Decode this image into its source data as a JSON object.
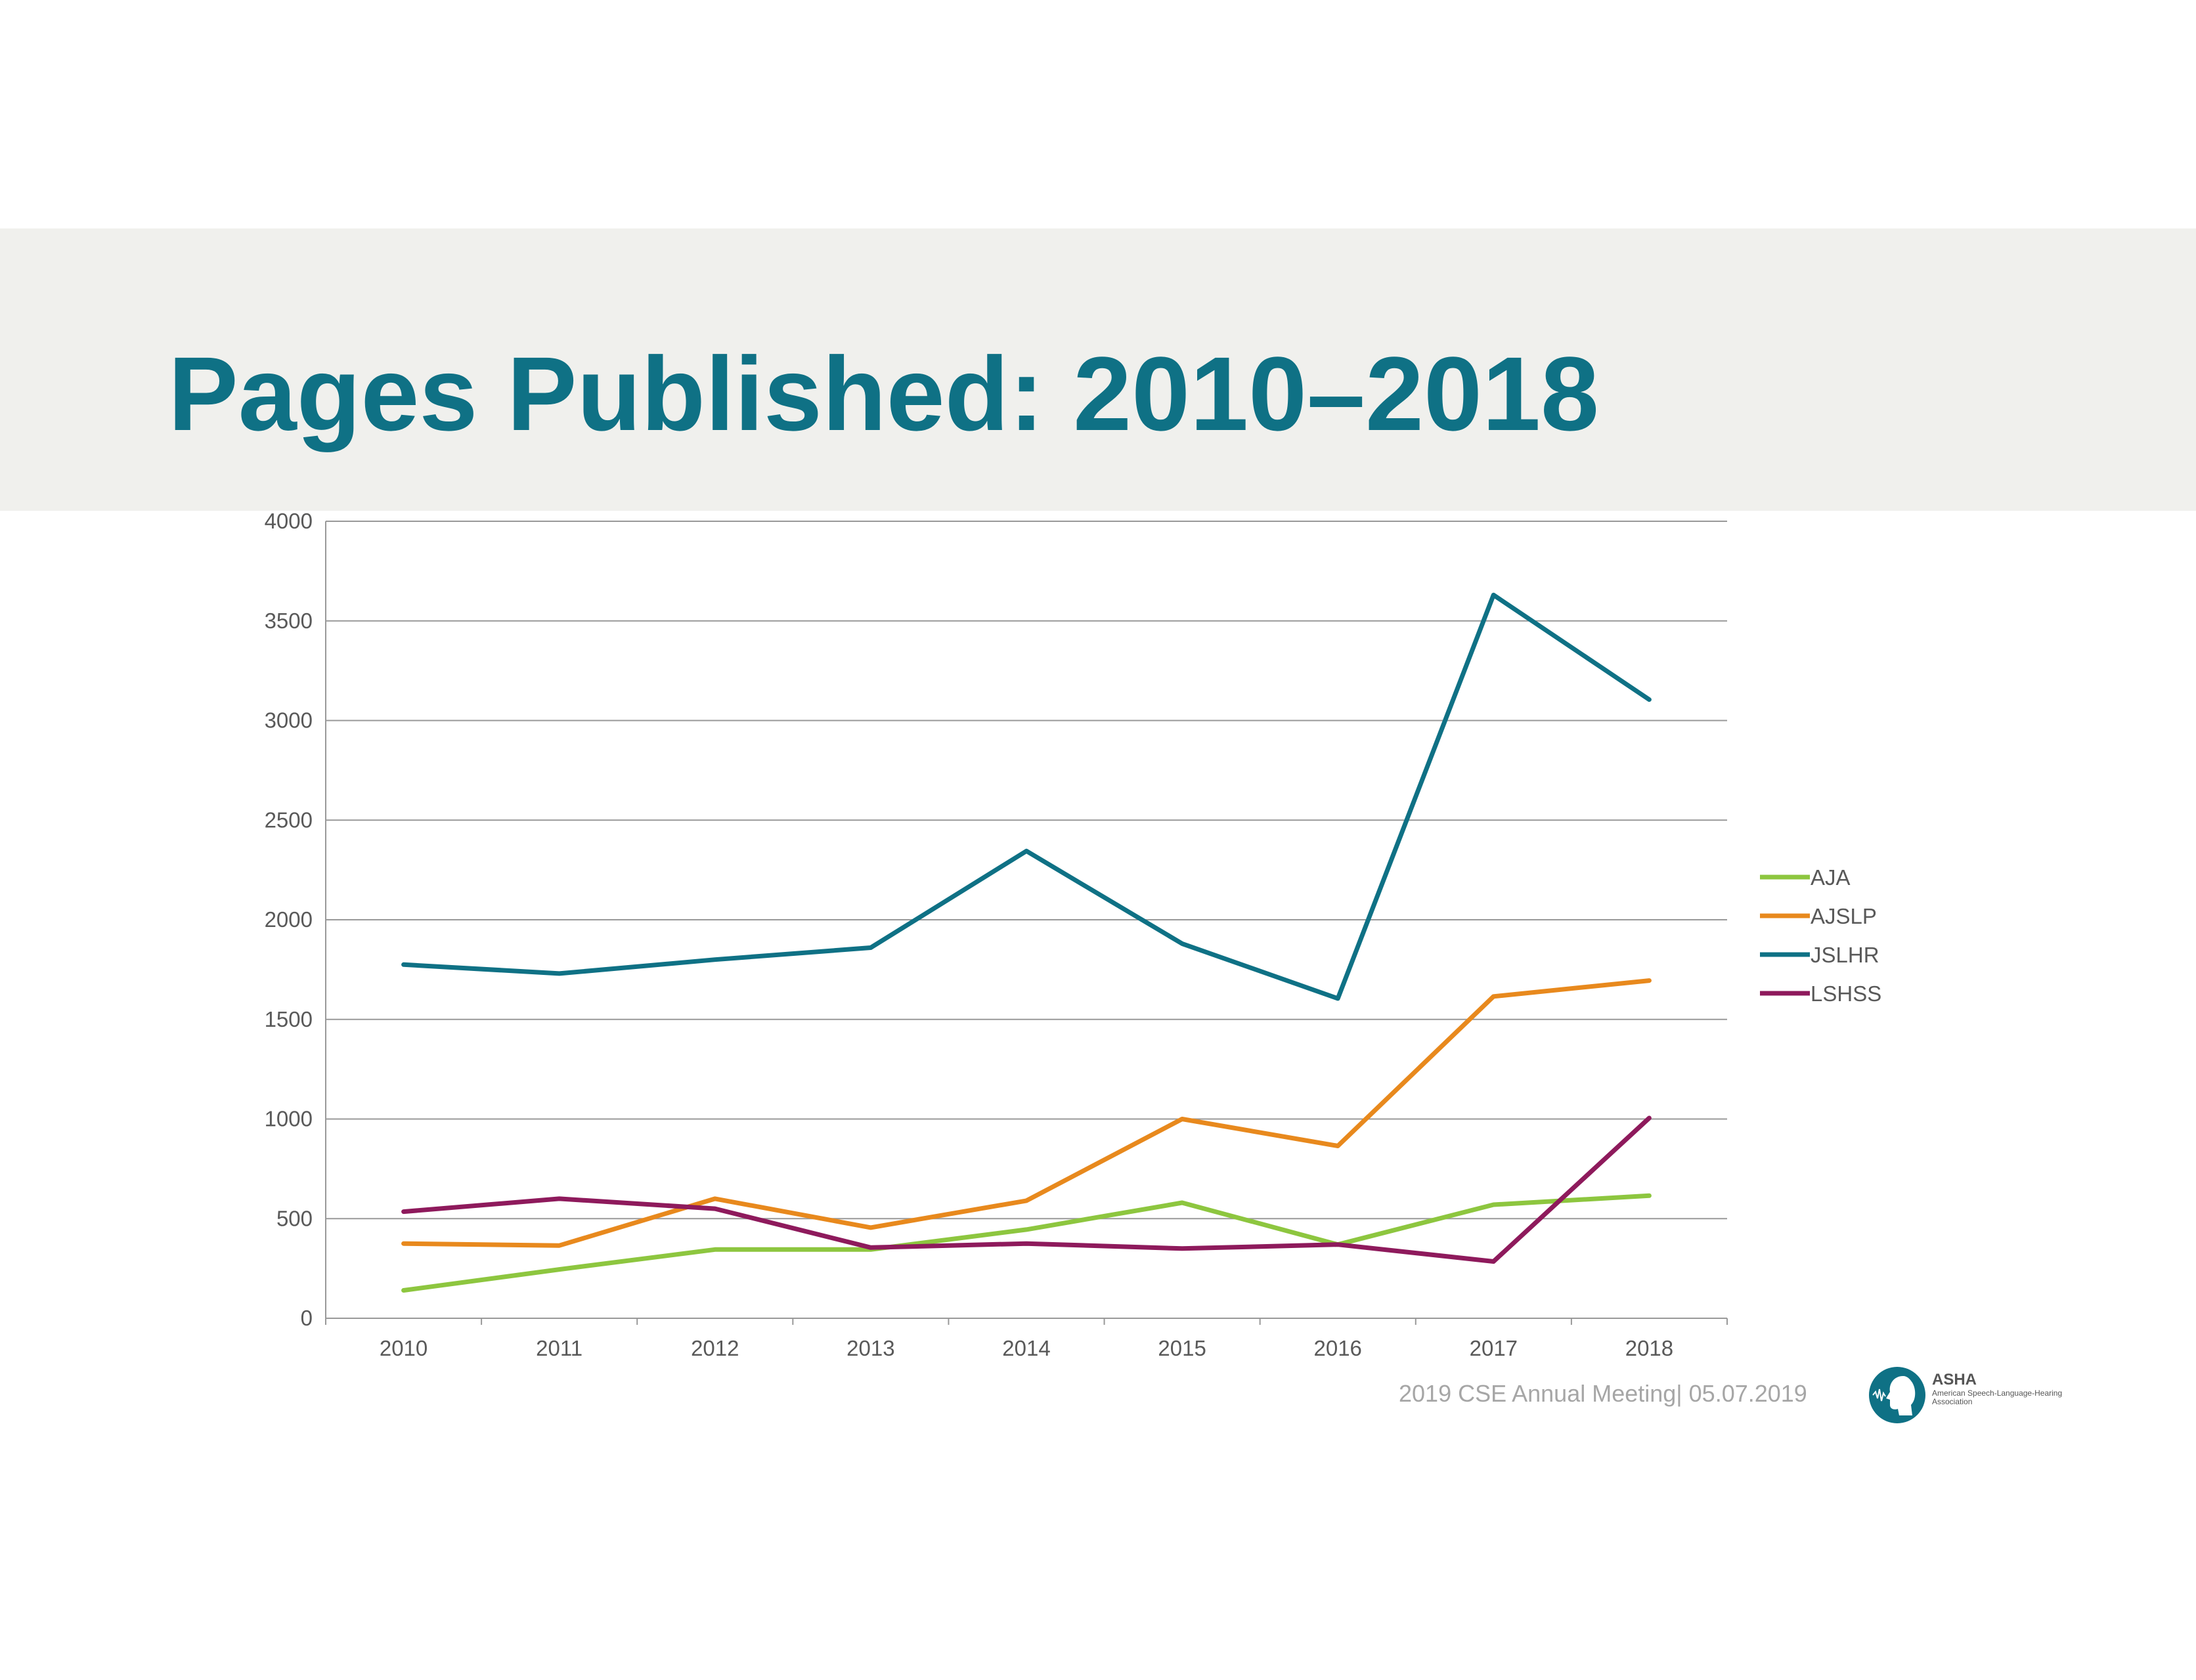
{
  "slide": {
    "title": "Pages Published: 2010–2018",
    "footer": "2019 CSE Annual Meeting| 05.07.2019",
    "logo_name": "ASHA",
    "logo_subtitle": "American Speech-Language-Hearing Association"
  },
  "colors": {
    "title": "#0f7185",
    "band": "#f0f0ed",
    "AJA": "#8dc63f",
    "AJSLP": "#e8891d",
    "JSLHR": "#0f7185",
    "LSHSS": "#8e1a5c"
  },
  "icons": {
    "logo": "asha-head-icon"
  },
  "chart_data": {
    "type": "line",
    "title": "",
    "xlabel": "",
    "ylabel": "",
    "categories": [
      "2010",
      "2011",
      "2012",
      "2013",
      "2014",
      "2015",
      "2016",
      "2017",
      "2018"
    ],
    "ylim": [
      0,
      4000
    ],
    "yticks": [
      "0",
      "500",
      "1000",
      "1500",
      "2000",
      "2500",
      "3000",
      "3500",
      "4000"
    ],
    "grid": true,
    "legend_position": "right",
    "series": [
      {
        "name": "AJA",
        "values": [
          140,
          245,
          345,
          345,
          445,
          580,
          370,
          570,
          615
        ]
      },
      {
        "name": "AJSLP",
        "values": [
          375,
          365,
          600,
          455,
          590,
          1000,
          865,
          1615,
          1695
        ]
      },
      {
        "name": "JSLHR",
        "values": [
          1775,
          1730,
          1800,
          1860,
          2345,
          1880,
          1605,
          3630,
          3105
        ]
      },
      {
        "name": "LSHSS",
        "values": [
          535,
          600,
          550,
          355,
          375,
          350,
          370,
          285,
          1005
        ]
      }
    ]
  }
}
